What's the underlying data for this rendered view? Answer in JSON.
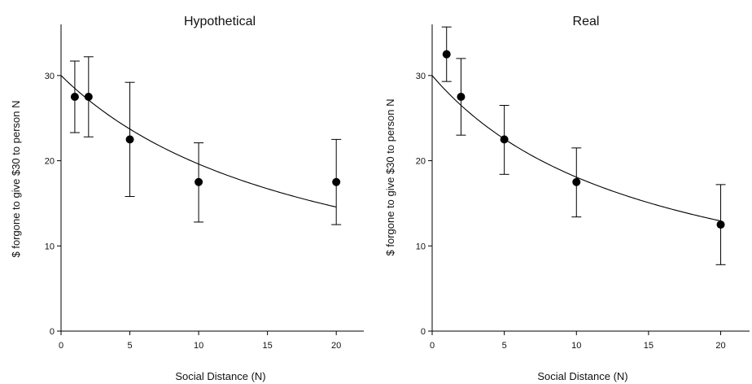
{
  "chart_data": [
    {
      "type": "scatter",
      "title": "Hypothetical",
      "xlabel": "Social Distance (N)",
      "ylabel": "$ forgone to give $30 to person N",
      "xlim": [
        0,
        22
      ],
      "ylim": [
        0,
        36
      ],
      "x_ticks": [
        0,
        5,
        10,
        15,
        20
      ],
      "y_ticks": [
        0,
        10,
        20,
        30
      ],
      "grid": false,
      "series": [
        {
          "points": [
            {
              "x": 1,
              "y": 27.5,
              "err_low": 23.3,
              "err_high": 31.7
            },
            {
              "x": 2,
              "y": 27.5,
              "err_low": 22.8,
              "err_high": 32.2
            },
            {
              "x": 5,
              "y": 22.5,
              "err_low": 15.8,
              "err_high": 29.2
            },
            {
              "x": 10,
              "y": 17.5,
              "err_low": 12.8,
              "err_high": 22.1
            },
            {
              "x": 20,
              "y": 17.5,
              "err_low": 12.5,
              "err_high": 22.5
            }
          ]
        }
      ],
      "fit_curve": {
        "form": "hyperbolic",
        "intercept": 30,
        "k": 0.053,
        "x_range": [
          0,
          20
        ]
      }
    },
    {
      "type": "scatter",
      "title": "Real",
      "xlabel": "Social Distance (N)",
      "ylabel": "$ forgone to give $30 to person N",
      "xlim": [
        0,
        22
      ],
      "ylim": [
        0,
        36
      ],
      "x_ticks": [
        0,
        5,
        10,
        15,
        20
      ],
      "y_ticks": [
        0,
        10,
        20,
        30
      ],
      "grid": false,
      "series": [
        {
          "points": [
            {
              "x": 1,
              "y": 32.5,
              "err_low": 29.3,
              "err_high": 35.7
            },
            {
              "x": 2,
              "y": 27.5,
              "err_low": 23.0,
              "err_high": 32.0
            },
            {
              "x": 5,
              "y": 22.5,
              "err_low": 18.4,
              "err_high": 26.5
            },
            {
              "x": 10,
              "y": 17.5,
              "err_low": 13.4,
              "err_high": 21.5
            },
            {
              "x": 20,
              "y": 12.5,
              "err_low": 7.8,
              "err_high": 17.2
            }
          ]
        }
      ],
      "fit_curve": {
        "form": "hyperbolic",
        "intercept": 30,
        "k": 0.066,
        "x_range": [
          0,
          20
        ]
      }
    }
  ]
}
